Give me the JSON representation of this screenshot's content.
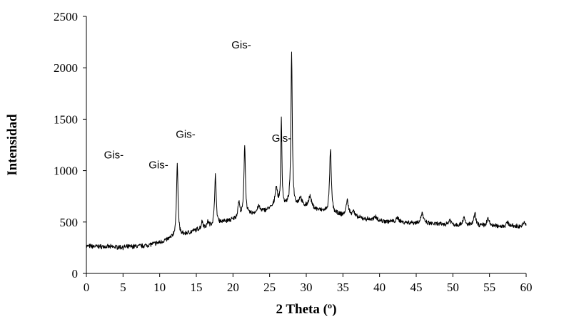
{
  "chart_data": {
    "type": "line",
    "xlabel": "2 Theta (º)",
    "ylabel": "Intensidad",
    "xlim": [
      0,
      60
    ],
    "ylim": [
      0,
      2500
    ],
    "xticks": [
      0,
      5,
      10,
      15,
      20,
      25,
      30,
      35,
      40,
      45,
      50,
      55,
      60
    ],
    "yticks": [
      0,
      500,
      1000,
      1500,
      2000,
      2500
    ],
    "grid": false,
    "legend": "none",
    "line_color": "#000000",
    "baseline": [
      [
        0,
        265
      ],
      [
        5,
        255
      ],
      [
        8,
        270
      ],
      [
        10,
        300
      ],
      [
        11.5,
        340
      ],
      [
        12,
        360
      ],
      [
        13,
        370
      ],
      [
        15,
        420
      ],
      [
        17,
        455
      ],
      [
        18,
        490
      ],
      [
        20,
        520
      ],
      [
        22,
        565
      ],
      [
        24,
        600
      ],
      [
        25,
        625
      ],
      [
        27,
        650
      ],
      [
        29,
        655
      ],
      [
        31,
        625
      ],
      [
        33,
        590
      ],
      [
        35,
        560
      ],
      [
        37,
        540
      ],
      [
        40,
        510
      ],
      [
        45,
        490
      ],
      [
        50,
        470
      ],
      [
        55,
        460
      ],
      [
        60,
        455
      ]
    ],
    "peaks": [
      {
        "x": 12.4,
        "height": 720,
        "width": 0.12
      },
      {
        "x": 15.8,
        "height": 70,
        "width": 0.15
      },
      {
        "x": 16.6,
        "height": 50,
        "width": 0.15
      },
      {
        "x": 17.6,
        "height": 490,
        "width": 0.12
      },
      {
        "x": 20.8,
        "height": 150,
        "width": 0.15
      },
      {
        "x": 21.6,
        "height": 690,
        "width": 0.12
      },
      {
        "x": 23.5,
        "height": 60,
        "width": 0.2
      },
      {
        "x": 25.9,
        "height": 200,
        "width": 0.2
      },
      {
        "x": 26.6,
        "height": 850,
        "width": 0.09
      },
      {
        "x": 28.0,
        "height": 1490,
        "width": 0.11
      },
      {
        "x": 29.2,
        "height": 80,
        "width": 0.2
      },
      {
        "x": 30.5,
        "height": 110,
        "width": 0.25
      },
      {
        "x": 33.3,
        "height": 610,
        "width": 0.14
      },
      {
        "x": 35.6,
        "height": 150,
        "width": 0.2
      },
      {
        "x": 36.4,
        "height": 60,
        "width": 0.2
      },
      {
        "x": 39.5,
        "height": 40,
        "width": 0.2
      },
      {
        "x": 42.5,
        "height": 40,
        "width": 0.2
      },
      {
        "x": 45.8,
        "height": 100,
        "width": 0.2
      },
      {
        "x": 49.6,
        "height": 50,
        "width": 0.2
      },
      {
        "x": 51.5,
        "height": 70,
        "width": 0.2
      },
      {
        "x": 53.0,
        "height": 110,
        "width": 0.18
      },
      {
        "x": 54.8,
        "height": 70,
        "width": 0.2
      },
      {
        "x": 57.5,
        "height": 40,
        "width": 0.2
      },
      {
        "x": 59.8,
        "height": 40,
        "width": 0.2
      }
    ],
    "annotations": [
      {
        "text": "Gis-",
        "x": 2.4,
        "y": 1120
      },
      {
        "text": "Gis-",
        "x": 8.5,
        "y": 1020
      },
      {
        "text": "Gis-",
        "x": 12.2,
        "y": 1320
      },
      {
        "text": "Gis-",
        "x": 19.8,
        "y": 2190
      },
      {
        "text": "Gis-",
        "x": 25.3,
        "y": 1280
      }
    ]
  }
}
